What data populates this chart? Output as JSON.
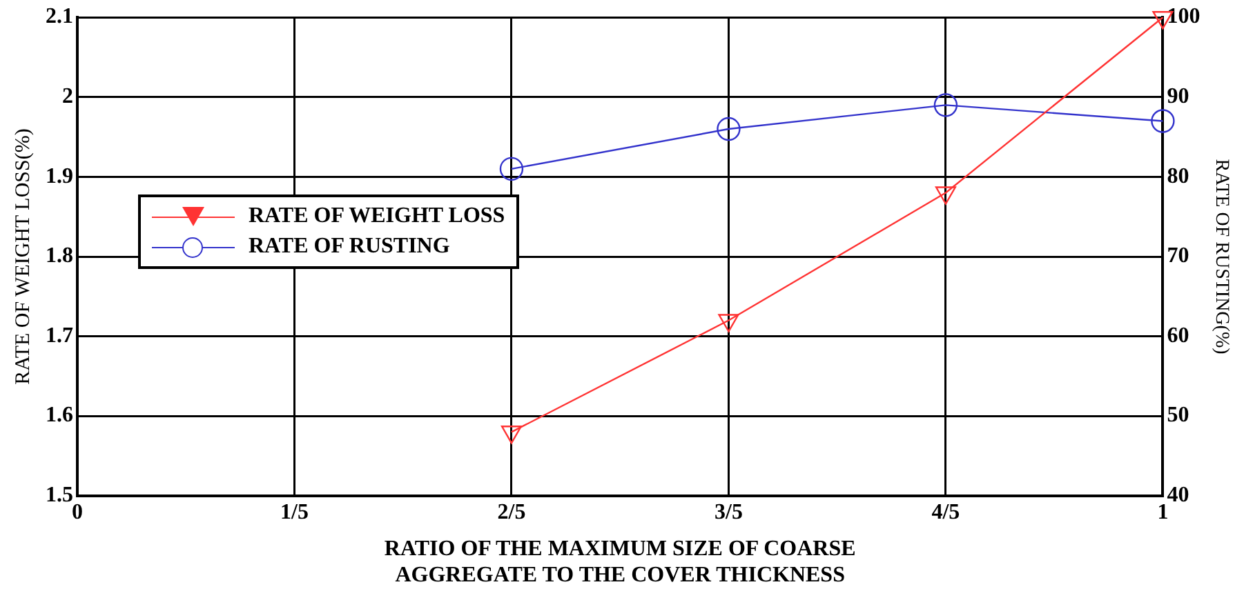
{
  "chart_data": {
    "type": "line",
    "x": [
      0.4,
      0.6,
      0.8,
      1
    ],
    "series": [
      {
        "name": "RATE OF WEIGHT LOSS",
        "color": "#ff3333",
        "marker": "triangle",
        "values": [
          1.58,
          1.72,
          1.88,
          2.1
        ]
      },
      {
        "name": "RATE OF RUSTING",
        "color": "#3333cc",
        "marker": "circle",
        "axis": "y2",
        "values": [
          81,
          86,
          89,
          87
        ]
      }
    ],
    "xlabel": "RATIO OF THE MAXIMUM SIZE OF COARSE AGGREGATE TO THE COVER THICKNESS",
    "ylabel": "RATE OF WEIGHT LOSS(%)",
    "y2label": "RATE OF RUSTING(%)",
    "xlim": [
      0,
      1
    ],
    "xticks": [
      0,
      {
        "value": 0.2,
        "label": "1/5"
      },
      {
        "value": 0.4,
        "label": "2/5"
      },
      {
        "value": 0.6,
        "label": "3/5"
      },
      {
        "value": 0.8,
        "label": "4/5"
      },
      1
    ],
    "ylim": [
      1.5,
      2.1
    ],
    "yticks": [
      1.5,
      1.6,
      1.7,
      1.8,
      1.9,
      2,
      2.1
    ],
    "y2lim": [
      40,
      100
    ],
    "y2ticks": [
      40,
      50,
      60,
      70,
      80,
      90,
      100
    ],
    "grid": true,
    "legend": "left",
    "line_style": "solid"
  }
}
